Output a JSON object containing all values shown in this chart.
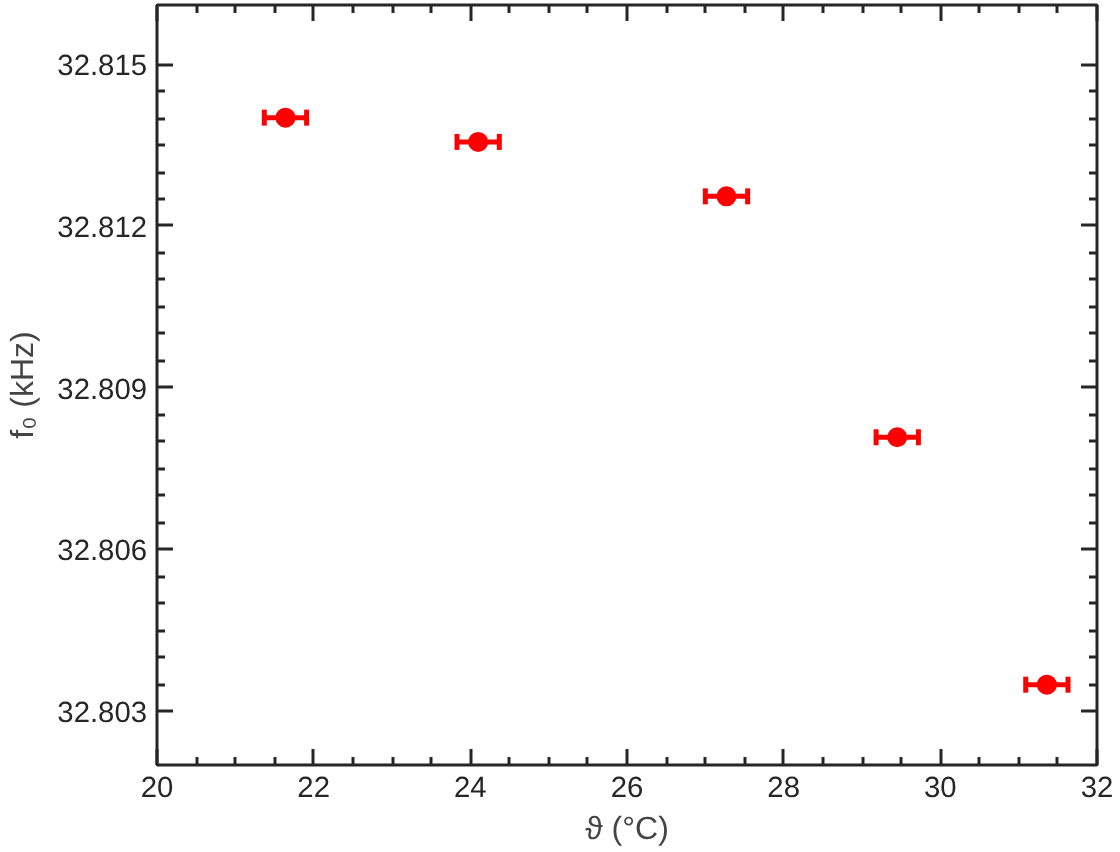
{
  "chart_data": {
    "type": "scatter",
    "xlabel": "ϑ (°C)",
    "ylabel": "f₀ (kHz)",
    "x": [
      21.64,
      24.1,
      27.27,
      29.45,
      31.36
    ],
    "values": [
      32.81401,
      32.81356,
      32.81255,
      32.80808,
      32.80349
    ],
    "xerrors": [
      0.27,
      0.27,
      0.27,
      0.27,
      0.27
    ],
    "color": "#ff0000",
    "marker": "circle",
    "grid": false,
    "xlim": [
      20,
      32
    ],
    "xticks": [
      20,
      22,
      24,
      26,
      28,
      30,
      32
    ],
    "ylim": [
      32.802,
      32.8161
    ],
    "yticks": [
      32.803,
      32.806,
      32.809,
      32.812,
      32.815
    ]
  }
}
